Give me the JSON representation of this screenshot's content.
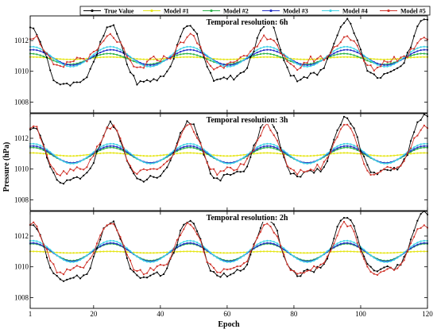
{
  "legend": {
    "placement": "top",
    "entries": [
      {
        "name": "True Value",
        "color": "#000000",
        "marker": "dot"
      },
      {
        "name": "Model #1",
        "color": "#e6e61a",
        "marker": "dot"
      },
      {
        "name": "Model #2",
        "color": "#2db34a",
        "marker": "dot"
      },
      {
        "name": "Model #3",
        "color": "#2430c8",
        "marker": "dot"
      },
      {
        "name": "Model #4",
        "color": "#3fd3e6",
        "marker": "dot"
      },
      {
        "name": "Model #5",
        "color": "#d0332a",
        "marker": "dot"
      }
    ]
  },
  "axes": {
    "xlabel": "Epoch",
    "ylabel": "Pressure (hPa)"
  },
  "chart_data": [
    {
      "type": "line",
      "title": "Temporal resolution: 6h",
      "xlim": [
        1,
        120
      ],
      "ylim": [
        1007.3,
        1013.6
      ],
      "xticks": [
        1,
        20,
        40,
        60,
        80,
        100,
        120
      ],
      "yticks": [
        1008,
        1010,
        1012
      ],
      "grid": false,
      "series": [
        {
          "name": "True Value",
          "wave": {
            "mean": 1010.8,
            "amps": [
              1.8,
              0.55
            ],
            "periods": [
              23.5,
              11.75
            ],
            "phases": [
              1.2,
              0.6
            ],
            "trend": 0.006,
            "jitter": 0.18
          }
        },
        {
          "name": "Model #1",
          "wave": {
            "mean": 1010.85,
            "amps": [
              0.08
            ],
            "periods": [
              23.5
            ],
            "phases": [
              1.2
            ]
          }
        },
        {
          "name": "Model #2",
          "wave": {
            "mean": 1010.8,
            "amps": [
              0.35
            ],
            "periods": [
              23.5
            ],
            "phases": [
              1.3
            ]
          }
        },
        {
          "name": "Model #3",
          "wave": {
            "mean": 1010.9,
            "amps": [
              0.5
            ],
            "periods": [
              23.5
            ],
            "phases": [
              1.1
            ]
          }
        },
        {
          "name": "Model #4",
          "wave": {
            "mean": 1010.95,
            "amps": [
              0.65
            ],
            "periods": [
              23.5
            ],
            "phases": [
              1.15
            ]
          }
        },
        {
          "name": "Model #5",
          "wave": {
            "mean": 1011.1,
            "amps": [
              0.85,
              0.4
            ],
            "periods": [
              23.5,
              11.75
            ],
            "phases": [
              1.4,
              0.3
            ],
            "jitter": 0.22
          }
        }
      ]
    },
    {
      "type": "line",
      "title": "Temporal resolution: 3h",
      "xlim": [
        1,
        120
      ],
      "ylim": [
        1007.3,
        1013.6
      ],
      "xticks": [
        1,
        20,
        40,
        60,
        80,
        100,
        120
      ],
      "yticks": [
        1008,
        1010,
        1012
      ],
      "grid": false,
      "series": [
        {
          "name": "True Value",
          "wave": {
            "mean": 1010.8,
            "amps": [
              1.8,
              0.55
            ],
            "periods": [
              23.5,
              11.75
            ],
            "phases": [
              1.2,
              0.6
            ],
            "trend": 0.006,
            "jitter": 0.18
          }
        },
        {
          "name": "Model #1",
          "wave": {
            "mean": 1010.95,
            "amps": [
              0.1
            ],
            "periods": [
              23.5
            ],
            "phases": [
              1.2
            ]
          }
        },
        {
          "name": "Model #2",
          "wave": {
            "mean": 1010.9,
            "amps": [
              0.5
            ],
            "periods": [
              23.5
            ],
            "phases": [
              1.1
            ]
          }
        },
        {
          "name": "Model #3",
          "wave": {
            "mean": 1010.95,
            "amps": [
              0.55
            ],
            "periods": [
              23.5
            ],
            "phases": [
              1.1
            ]
          }
        },
        {
          "name": "Model #4",
          "wave": {
            "mean": 1011.0,
            "amps": [
              0.65
            ],
            "periods": [
              23.5
            ],
            "phases": [
              1.1
            ]
          }
        },
        {
          "name": "Model #5",
          "wave": {
            "mean": 1010.9,
            "amps": [
              1.4,
              0.5
            ],
            "periods": [
              23.5,
              11.75
            ],
            "phases": [
              1.25,
              0.55
            ],
            "jitter": 0.2
          }
        }
      ]
    },
    {
      "type": "line",
      "title": "Temporal resolution: 2h",
      "xlim": [
        1,
        120
      ],
      "ylim": [
        1007.3,
        1013.6
      ],
      "xticks": [
        1,
        20,
        40,
        60,
        80,
        100,
        120
      ],
      "yticks": [
        1008,
        1010,
        1012
      ],
      "grid": false,
      "series": [
        {
          "name": "True Value",
          "wave": {
            "mean": 1010.8,
            "amps": [
              1.8,
              0.55
            ],
            "periods": [
              23.5,
              11.75
            ],
            "phases": [
              1.2,
              0.6
            ],
            "trend": 0.006,
            "jitter": 0.18
          }
        },
        {
          "name": "Model #1",
          "wave": {
            "mean": 1010.95,
            "amps": [
              0.05
            ],
            "periods": [
              23.5
            ],
            "phases": [
              1.2
            ]
          }
        },
        {
          "name": "Model #2",
          "wave": {
            "mean": 1010.95,
            "amps": [
              0.55
            ],
            "periods": [
              23.5
            ],
            "phases": [
              1.1
            ]
          }
        },
        {
          "name": "Model #3",
          "wave": {
            "mean": 1010.95,
            "amps": [
              0.6
            ],
            "periods": [
              23.5
            ],
            "phases": [
              1.1
            ]
          }
        },
        {
          "name": "Model #4",
          "wave": {
            "mean": 1011.0,
            "amps": [
              0.7
            ],
            "periods": [
              23.5
            ],
            "phases": [
              1.1
            ]
          }
        },
        {
          "name": "Model #5",
          "wave": {
            "mean": 1010.85,
            "amps": [
              1.5,
              0.45
            ],
            "periods": [
              23.5,
              11.75
            ],
            "phases": [
              1.25,
              0.6
            ],
            "jitter": 0.18
          }
        }
      ]
    }
  ]
}
